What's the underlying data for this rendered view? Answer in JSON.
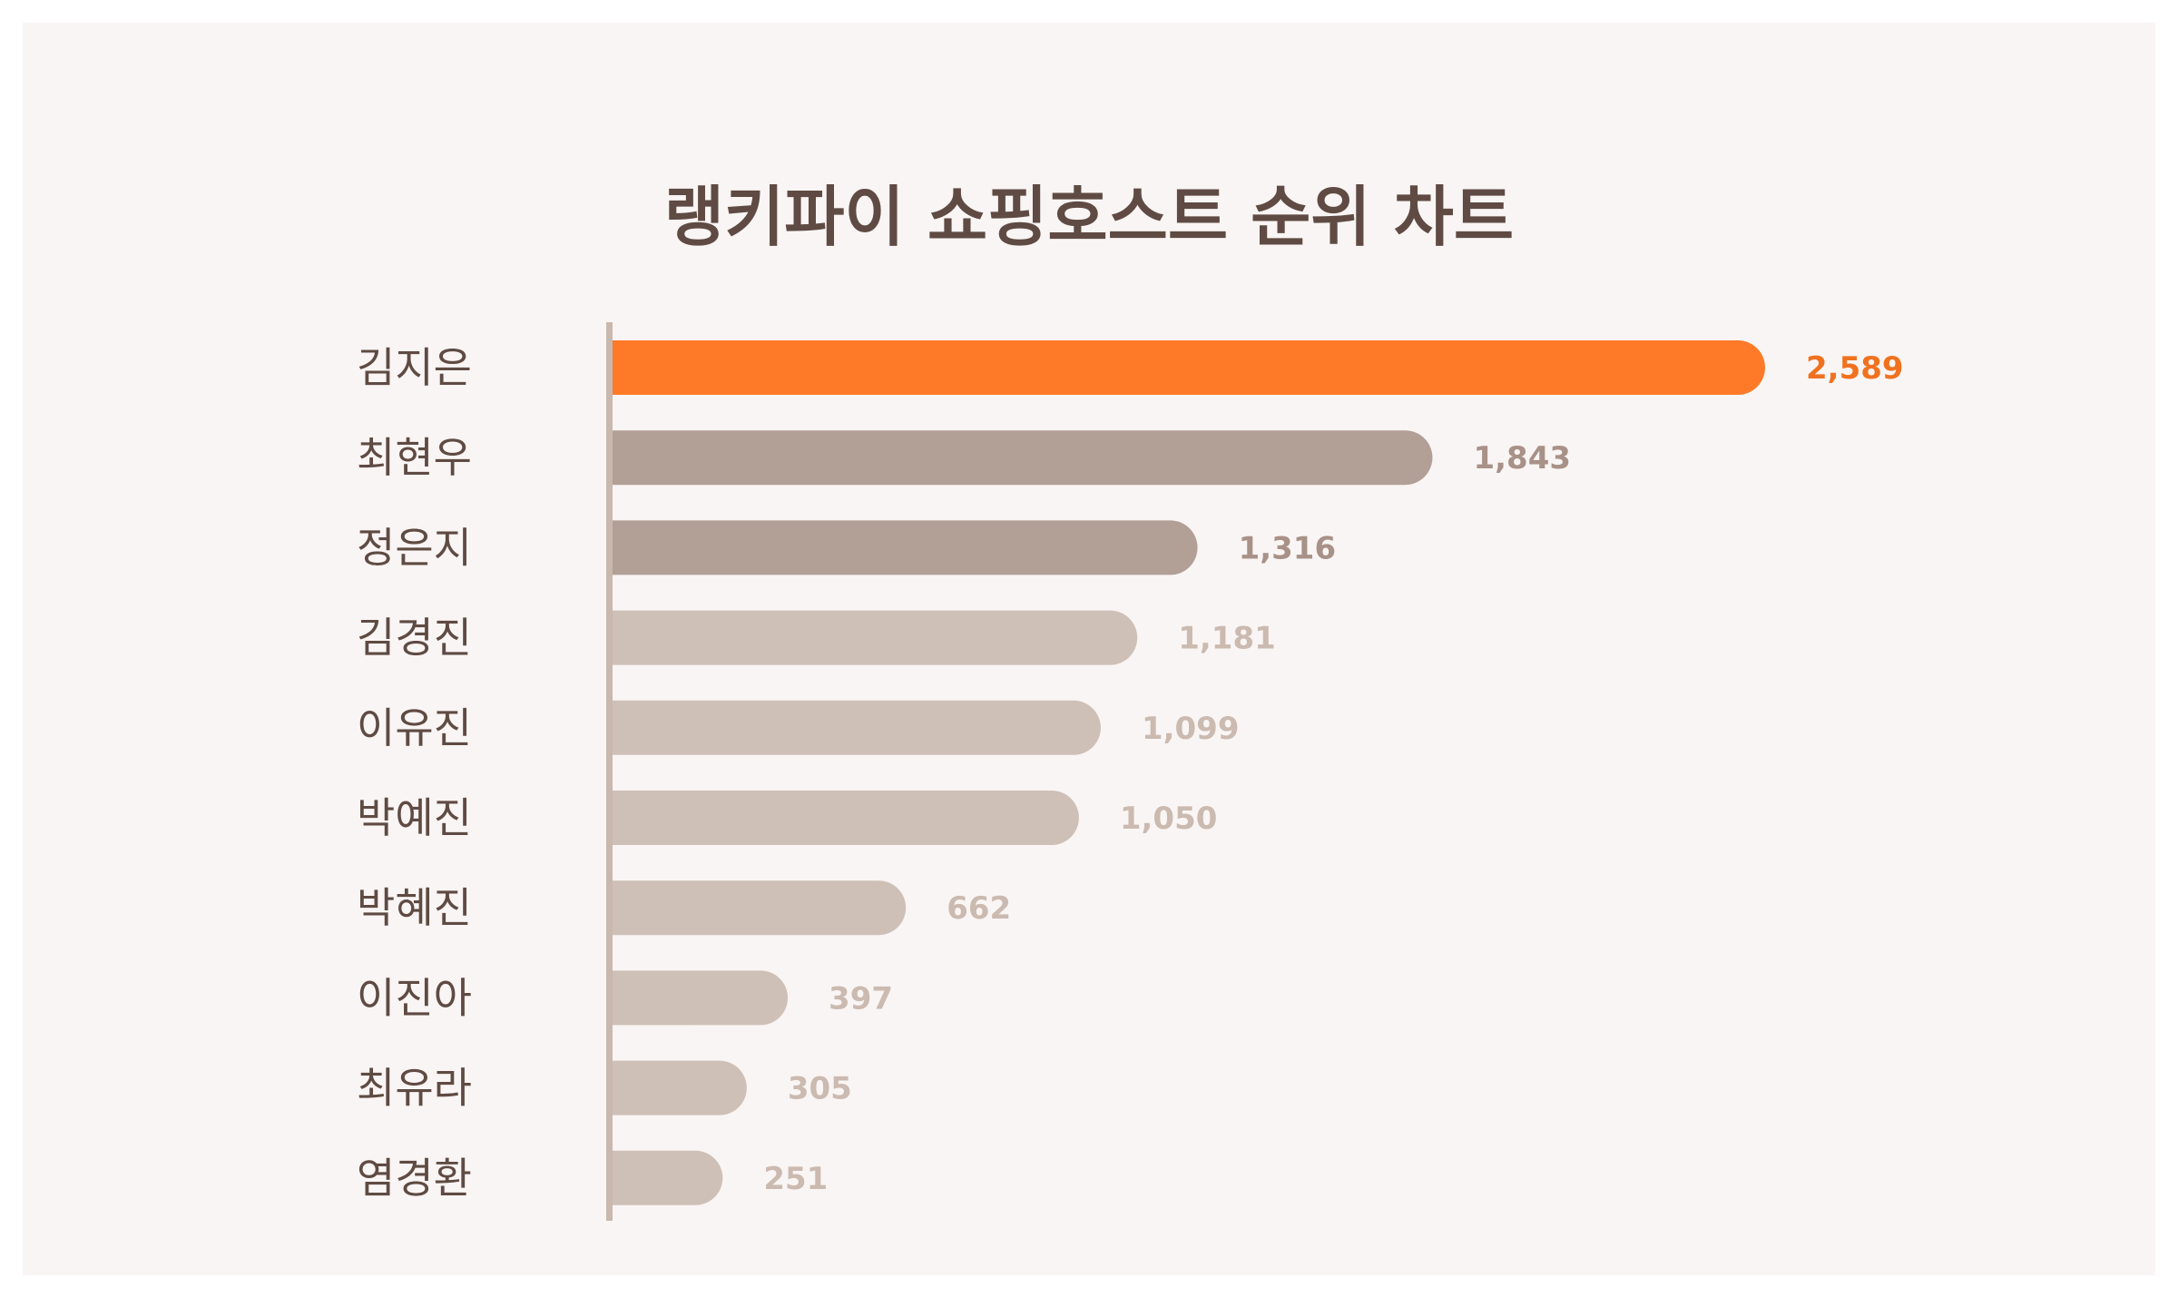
{
  "chart_data": {
    "type": "bar",
    "orientation": "horizontal",
    "title": "랭키파이 쇼핑호스트 순위 차트",
    "xlabel": "",
    "ylabel": "",
    "categories": [
      "김지은",
      "최현우",
      "정은지",
      "김경진",
      "이유진",
      "박예진",
      "박혜진",
      "이진아",
      "최유라",
      "염경환"
    ],
    "values": [
      2589,
      1843,
      1316,
      1181,
      1099,
      1050,
      662,
      397,
      305,
      251
    ],
    "value_labels": [
      "2,589",
      "1,843",
      "1,316",
      "1,181",
      "1,099",
      "1,050",
      "662",
      "397",
      "305",
      "251"
    ],
    "xlim": [
      0,
      2589
    ],
    "grid": false,
    "legend": "none",
    "colors": {
      "background": "#f9f5f4",
      "title": "#5f4b43",
      "category_label": "#5f4b43",
      "axis": "#c8b8ae",
      "rank_1": "#ff7a28",
      "rank_1_label": "#f0721f",
      "rank_2_3": "#b29f95",
      "rank_2_3_label": "#a89187",
      "rank_rest": "#cec0b7",
      "rank_rest_label": "#cbbab0"
    }
  }
}
